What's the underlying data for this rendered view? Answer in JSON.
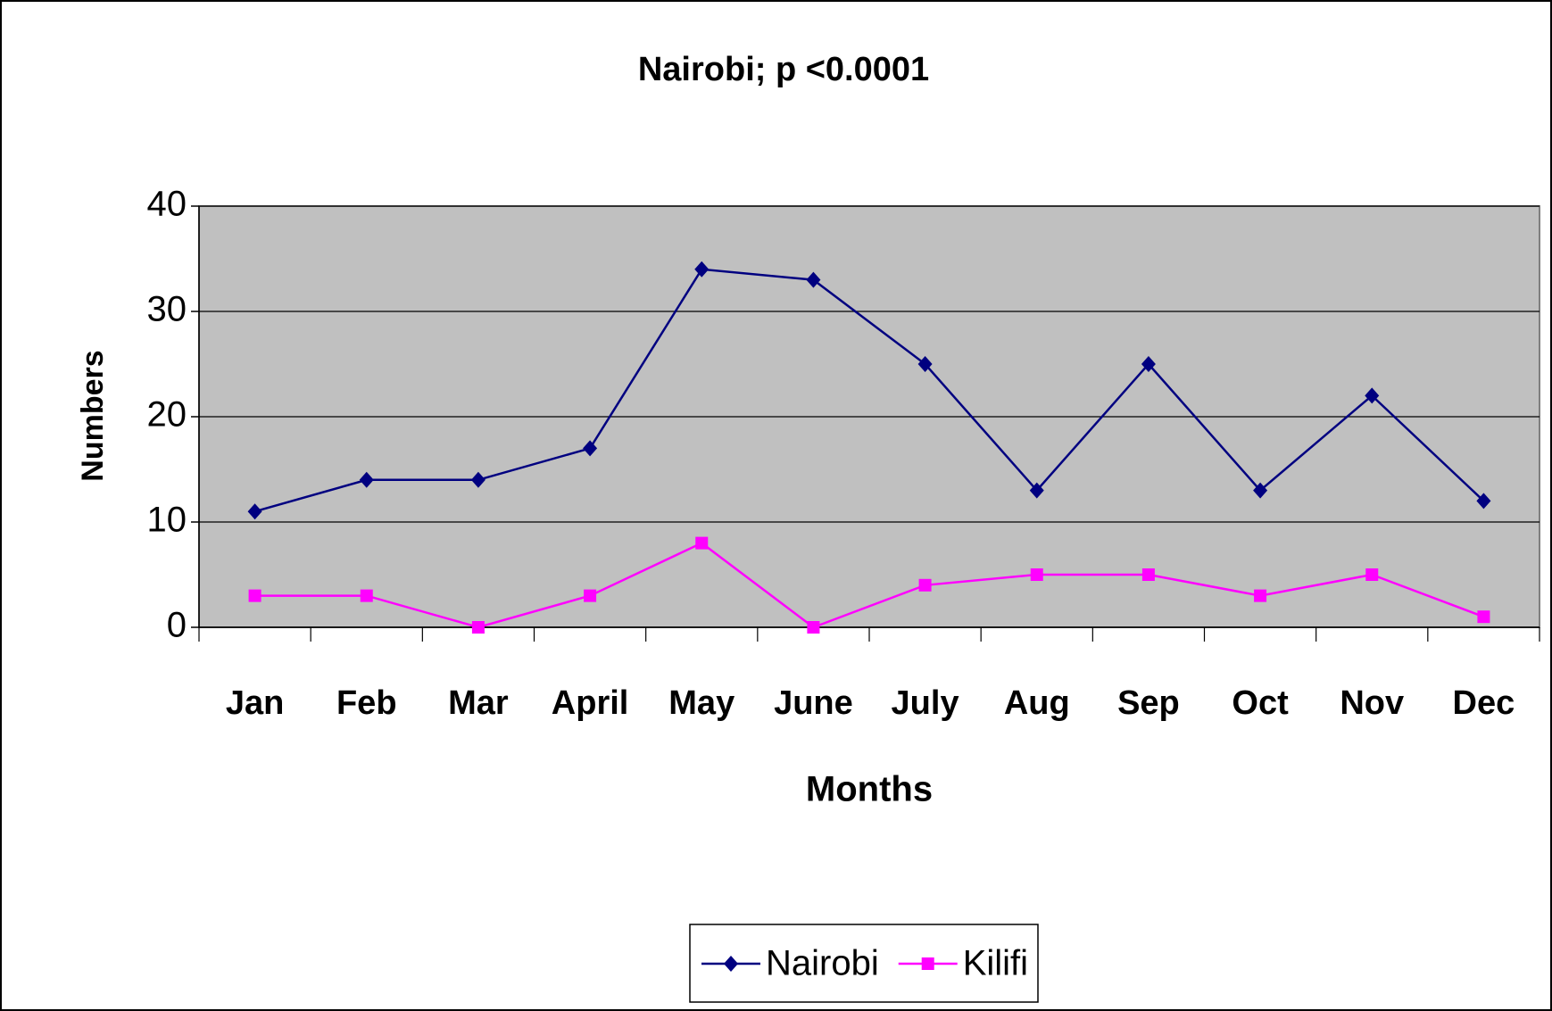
{
  "chart_data": {
    "type": "line",
    "title": "Nairobi; p <0.0001",
    "x_label": "Months",
    "y_label": "Numbers",
    "categories": [
      "Jan",
      "Feb",
      "Mar",
      "April",
      "May",
      "June",
      "July",
      "Aug",
      "Sep",
      "Oct",
      "Nov",
      "Dec"
    ],
    "series": [
      {
        "name": "Nairobi",
        "color": "#000080",
        "marker": "diamond",
        "values": [
          11,
          14,
          14,
          17,
          34,
          33,
          25,
          13,
          25,
          13,
          22,
          12
        ]
      },
      {
        "name": "Kilifi",
        "color": "#ff00ff",
        "marker": "square",
        "values": [
          3,
          3,
          0,
          3,
          8,
          0,
          4,
          5,
          5,
          3,
          5,
          1
        ]
      }
    ],
    "ylim": [
      0,
      40
    ],
    "yticks": [
      0,
      10,
      20,
      30,
      40
    ],
    "grid": true,
    "plot_background": "#c0c0c0",
    "legend": "bottom"
  }
}
